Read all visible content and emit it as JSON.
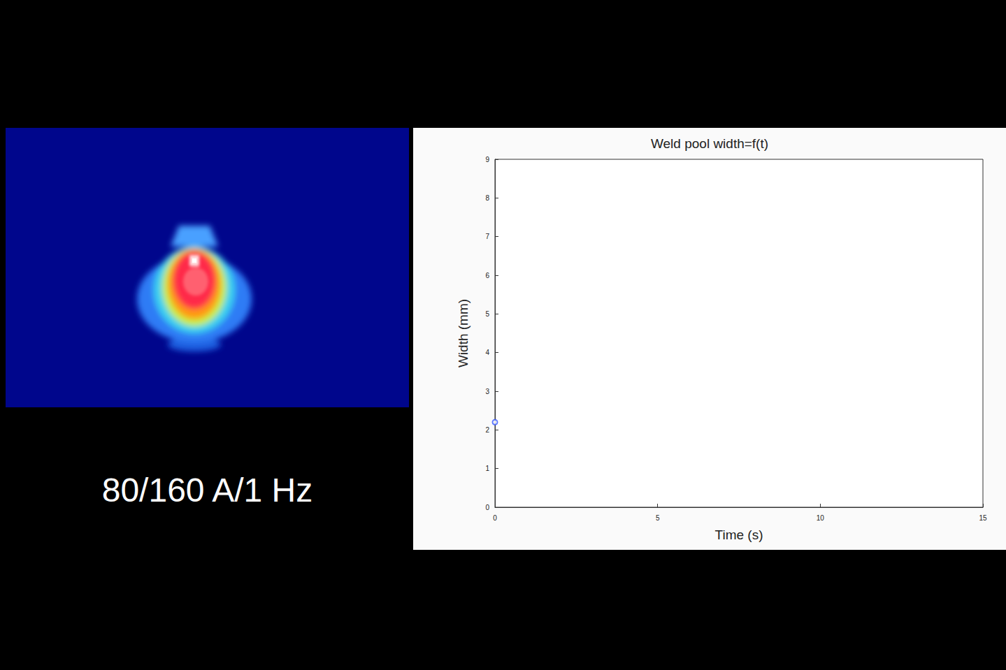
{
  "chart_data": {
    "type": "scatter",
    "title": "Weld pool width=f(t)",
    "x_label": "Time (s)",
    "y_label": "Width (mm)",
    "x": [
      0
    ],
    "values": [
      2.2
    ],
    "color": "#3b5bff",
    "marker": "circle",
    "xlim": [
      0,
      15
    ],
    "xticks": [
      0,
      5,
      10,
      15
    ],
    "ylim": [
      0,
      9
    ],
    "yticks": [
      0,
      1,
      2,
      3,
      4,
      5,
      6,
      7,
      8,
      9
    ],
    "grid": false
  },
  "caption": "80/160 A/1 Hz"
}
